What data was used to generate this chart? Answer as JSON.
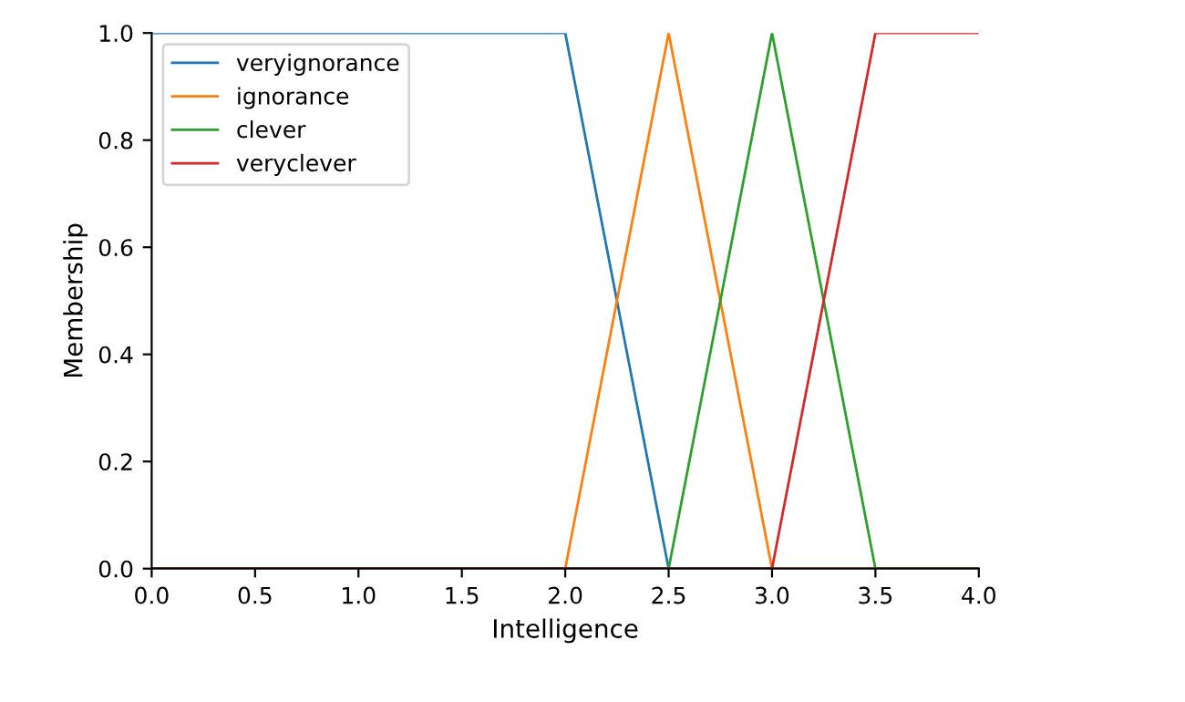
{
  "chart_data": {
    "type": "line",
    "xlabel": "Intelligence",
    "ylabel": "Membership",
    "xlim": [
      0,
      4
    ],
    "ylim": [
      0,
      1
    ],
    "xticks": [
      {
        "value": 0,
        "label": "0.0"
      },
      {
        "value": 0.5,
        "label": "0.5"
      },
      {
        "value": 1,
        "label": "1.0"
      },
      {
        "value": 1.5,
        "label": "1.5"
      },
      {
        "value": 2,
        "label": "2.0"
      },
      {
        "value": 2.5,
        "label": "2.5"
      },
      {
        "value": 3,
        "label": "3.0"
      },
      {
        "value": 3.5,
        "label": "3.5"
      },
      {
        "value": 4,
        "label": "4.0"
      }
    ],
    "yticks": [
      {
        "value": 0,
        "label": "0.0"
      },
      {
        "value": 0.2,
        "label": "0.2"
      },
      {
        "value": 0.4,
        "label": "0.4"
      },
      {
        "value": 0.6,
        "label": "0.6"
      },
      {
        "value": 0.8,
        "label": "0.8"
      },
      {
        "value": 1,
        "label": "1.0"
      }
    ],
    "series": [
      {
        "name": "veryignorance",
        "color": "#1f77b4",
        "x": [
          0,
          2,
          2.5,
          4
        ],
        "values": [
          1,
          1,
          0,
          0
        ]
      },
      {
        "name": "ignorance",
        "color": "#ff7f0e",
        "x": [
          0,
          2,
          2.5,
          3,
          4
        ],
        "values": [
          0,
          0,
          1,
          0,
          0
        ]
      },
      {
        "name": "clever",
        "color": "#2ca02c",
        "x": [
          0,
          2.5,
          3,
          3.5,
          4
        ],
        "values": [
          0,
          0,
          1,
          0,
          0
        ]
      },
      {
        "name": "veryclever",
        "color": "#d62728",
        "x": [
          0,
          3,
          3.5,
          4
        ],
        "values": [
          0,
          0,
          1,
          1
        ]
      }
    ],
    "legend": "top left",
    "grid": false
  }
}
